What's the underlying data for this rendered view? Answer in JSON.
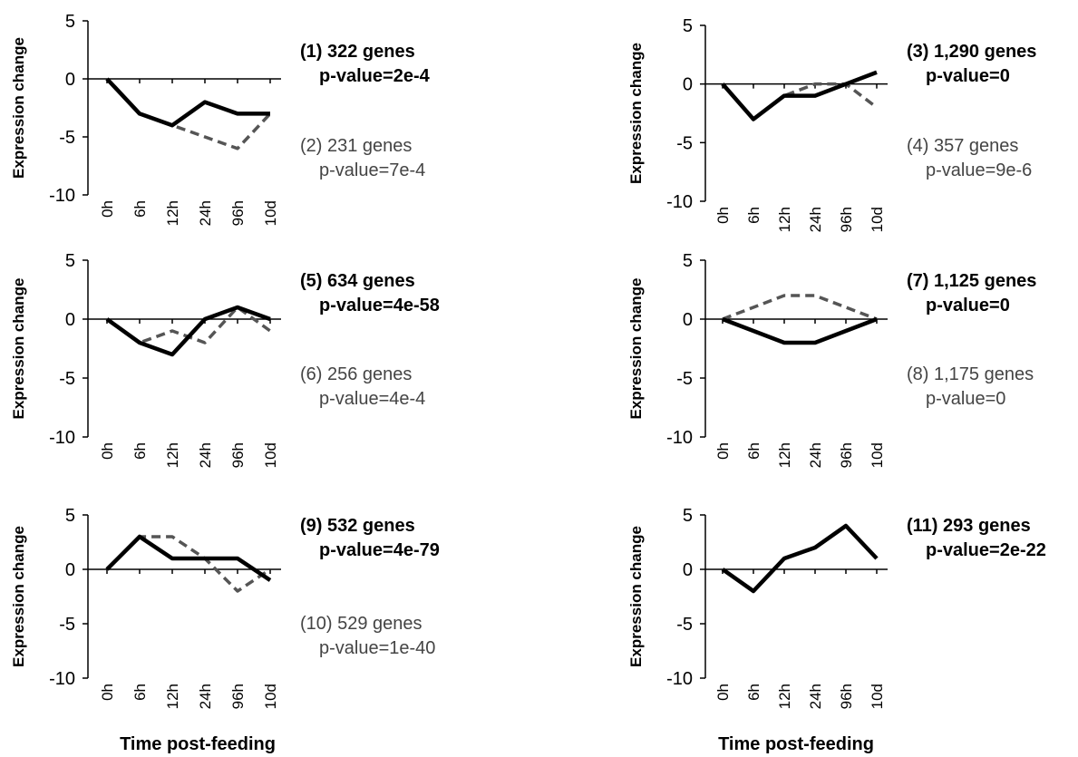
{
  "chart_data": [
    {
      "type": "line",
      "ylabel": "Expression change",
      "ylim": [
        -10,
        5
      ],
      "yticks": [
        "5",
        "0",
        "-5",
        "-10"
      ],
      "categories": [
        "0h",
        "6h",
        "12h",
        "24h",
        "96h",
        "10d"
      ],
      "series": [
        {
          "style": "solid",
          "color": "#000000",
          "values": [
            0,
            -3,
            -4,
            -2,
            -3,
            -3
          ]
        },
        {
          "style": "dashed",
          "color": "#555555",
          "values": [
            0,
            -3,
            -4,
            -5,
            -6,
            -3
          ]
        }
      ],
      "annotations": [
        {
          "line1": "(1) 322 genes",
          "line2": "p-value=2e-4",
          "style": "bold"
        },
        {
          "line1": "(2) 231 genes",
          "line2": "p-value=7e-4",
          "style": "plain"
        }
      ]
    },
    {
      "type": "line",
      "ylabel": "Expression change",
      "ylim": [
        -10,
        5
      ],
      "yticks": [
        "5",
        "0",
        "-5",
        "-10"
      ],
      "categories": [
        "0h",
        "6h",
        "12h",
        "24h",
        "96h",
        "10d"
      ],
      "series": [
        {
          "style": "solid",
          "color": "#000000",
          "values": [
            0,
            -3,
            -1,
            -1,
            0,
            1
          ]
        },
        {
          "style": "dashed",
          "color": "#555555",
          "values": [
            0,
            -3,
            -1,
            0,
            0,
            -2
          ]
        }
      ],
      "annotations": [
        {
          "line1": "(3) 1,290 genes",
          "line2": "p-value=0",
          "style": "bold"
        },
        {
          "line1": "(4) 357 genes",
          "line2": "p-value=9e-6",
          "style": "plain"
        }
      ]
    },
    {
      "type": "line",
      "ylabel": "Expression change",
      "ylim": [
        -10,
        5
      ],
      "yticks": [
        "5",
        "0",
        "-5",
        "-10"
      ],
      "categories": [
        "0h",
        "6h",
        "12h",
        "24h",
        "96h",
        "10d"
      ],
      "series": [
        {
          "style": "solid",
          "color": "#000000",
          "values": [
            0,
            -2,
            -3,
            0,
            1,
            0
          ]
        },
        {
          "style": "dashed",
          "color": "#555555",
          "values": [
            0,
            -2,
            -1,
            -2,
            1,
            -1
          ]
        }
      ],
      "annotations": [
        {
          "line1": "(5) 634 genes",
          "line2": "p-value=4e-58",
          "style": "bold"
        },
        {
          "line1": "(6) 256 genes",
          "line2": "p-value=4e-4",
          "style": "plain"
        }
      ]
    },
    {
      "type": "line",
      "ylabel": "Expression change",
      "ylim": [
        -10,
        5
      ],
      "yticks": [
        "5",
        "0",
        "-5",
        "-10"
      ],
      "categories": [
        "0h",
        "6h",
        "12h",
        "24h",
        "96h",
        "10d"
      ],
      "series": [
        {
          "style": "solid",
          "color": "#000000",
          "values": [
            0,
            -1,
            -2,
            -2,
            -1,
            0
          ]
        },
        {
          "style": "dashed",
          "color": "#555555",
          "values": [
            0,
            1,
            2,
            2,
            1,
            0
          ]
        }
      ],
      "annotations": [
        {
          "line1": "(7) 1,125 genes",
          "line2": "p-value=0",
          "style": "bold"
        },
        {
          "line1": "(8) 1,175 genes",
          "line2": "p-value=0",
          "style": "plain"
        }
      ]
    },
    {
      "type": "line",
      "ylabel": "Expression change",
      "xlabel": "Time post-feeding",
      "ylim": [
        -10,
        5
      ],
      "yticks": [
        "5",
        "0",
        "-5",
        "-10"
      ],
      "categories": [
        "0h",
        "6h",
        "12h",
        "24h",
        "96h",
        "10d"
      ],
      "series": [
        {
          "style": "solid",
          "color": "#000000",
          "values": [
            0,
            3,
            1,
            1,
            1,
            -1
          ]
        },
        {
          "style": "dashed",
          "color": "#555555",
          "values": [
            0,
            3,
            3,
            1,
            -2,
            0
          ]
        }
      ],
      "annotations": [
        {
          "line1": "(9) 532 genes",
          "line2": "p-value=4e-79",
          "style": "bold"
        },
        {
          "line1": "(10) 529 genes",
          "line2": "p-value=1e-40",
          "style": "plain"
        }
      ]
    },
    {
      "type": "line",
      "ylabel": "Expression change",
      "xlabel": "Time post-feeding",
      "ylim": [
        -10,
        5
      ],
      "yticks": [
        "5",
        "0",
        "-5",
        "-10"
      ],
      "categories": [
        "0h",
        "6h",
        "12h",
        "24h",
        "96h",
        "10d"
      ],
      "series": [
        {
          "style": "solid",
          "color": "#000000",
          "values": [
            0,
            -2,
            1,
            2,
            4,
            1
          ]
        }
      ],
      "annotations": [
        {
          "line1": "(11) 293 genes",
          "line2": "p-value=2e-22",
          "style": "bold"
        }
      ]
    }
  ]
}
